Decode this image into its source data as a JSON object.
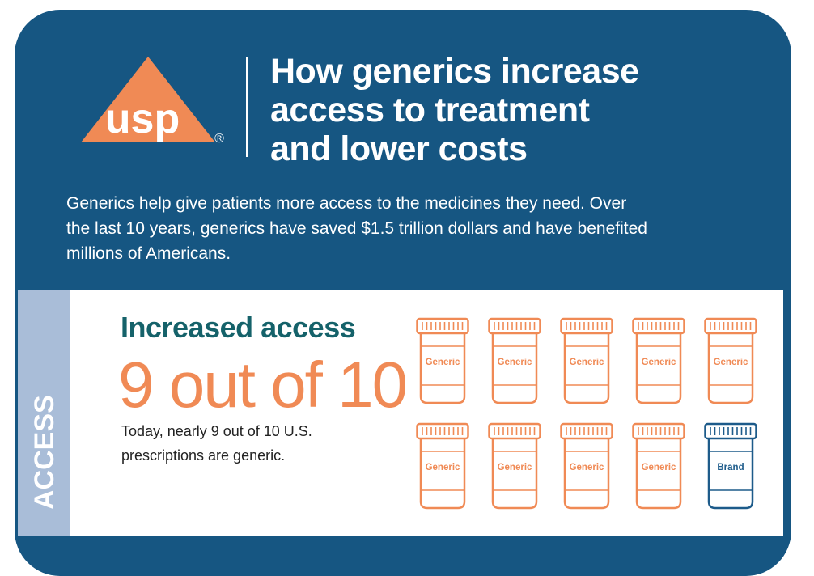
{
  "brand": {
    "logo_text": "usp",
    "registered_mark": "®"
  },
  "title_lines": [
    "How generics increase",
    "access to treatment",
    "and lower costs"
  ],
  "intro_lines": [
    "Generics help give patients more access to the medicines they need. Over",
    "the last 10 years, generics have saved $1.5 trillion dollars and have benefited",
    "millions of Americans."
  ],
  "section": {
    "side_label": "ACCESS",
    "title": "Increased access",
    "big_stat": "9 out of 10",
    "desc_lines": [
      "Today, nearly 9 out of 10 U.S.",
      "prescriptions are generic."
    ]
  },
  "bottles": [
    {
      "label": "Generic",
      "kind": "generic"
    },
    {
      "label": "Generic",
      "kind": "generic"
    },
    {
      "label": "Generic",
      "kind": "generic"
    },
    {
      "label": "Generic",
      "kind": "generic"
    },
    {
      "label": "Generic",
      "kind": "generic"
    },
    {
      "label": "Generic",
      "kind": "generic"
    },
    {
      "label": "Generic",
      "kind": "generic"
    },
    {
      "label": "Generic",
      "kind": "generic"
    },
    {
      "label": "Generic",
      "kind": "generic"
    },
    {
      "label": "Brand",
      "kind": "brand"
    }
  ],
  "colors": {
    "navy": "#165682",
    "orange": "#f08a55",
    "teal": "#15626a",
    "side_band": "#a9bdd8",
    "brand_bottle": "#1d5b8a"
  }
}
